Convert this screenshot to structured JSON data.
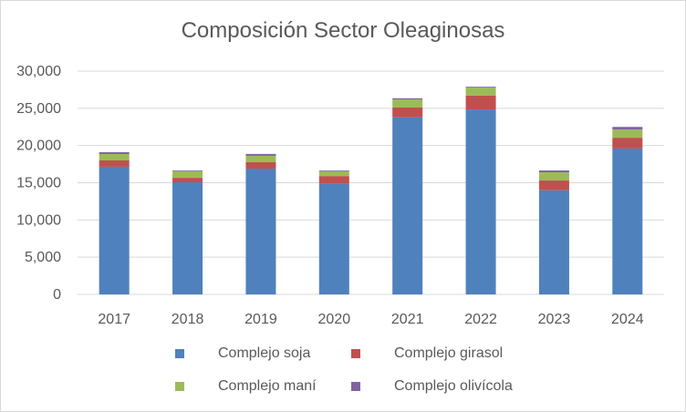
{
  "chart_data": {
    "type": "bar",
    "stacked": true,
    "title": "Composición Sector Oleaginosas",
    "xlabel": "",
    "ylabel": "",
    "ylim": [
      0,
      30000
    ],
    "yticks": [
      0,
      5000,
      10000,
      15000,
      20000,
      25000,
      30000
    ],
    "ytick_labels": [
      "0",
      "5,000",
      "10,000",
      "15,000",
      "20,000",
      "25,000",
      "30,000"
    ],
    "grid": true,
    "legend_position": "bottom",
    "categories": [
      "2017",
      "2018",
      "2019",
      "2020",
      "2021",
      "2022",
      "2023",
      "2024"
    ],
    "series": [
      {
        "name": "Complejo soja",
        "color": "#4f81bd",
        "values": [
          17150,
          15060,
          16900,
          14850,
          23800,
          24850,
          14000,
          19600
        ]
      },
      {
        "name": "Complejo girasol",
        "color": "#c0504d",
        "values": [
          850,
          600,
          860,
          1050,
          1300,
          1850,
          1300,
          1450
        ]
      },
      {
        "name": "Complejo maní",
        "color": "#9bbb59",
        "values": [
          860,
          900,
          860,
          650,
          1100,
          1100,
          1100,
          1100
        ]
      },
      {
        "name": "Complejo olivícola",
        "color": "#8064a2",
        "values": [
          250,
          100,
          250,
          100,
          150,
          100,
          250,
          350
        ]
      }
    ]
  }
}
